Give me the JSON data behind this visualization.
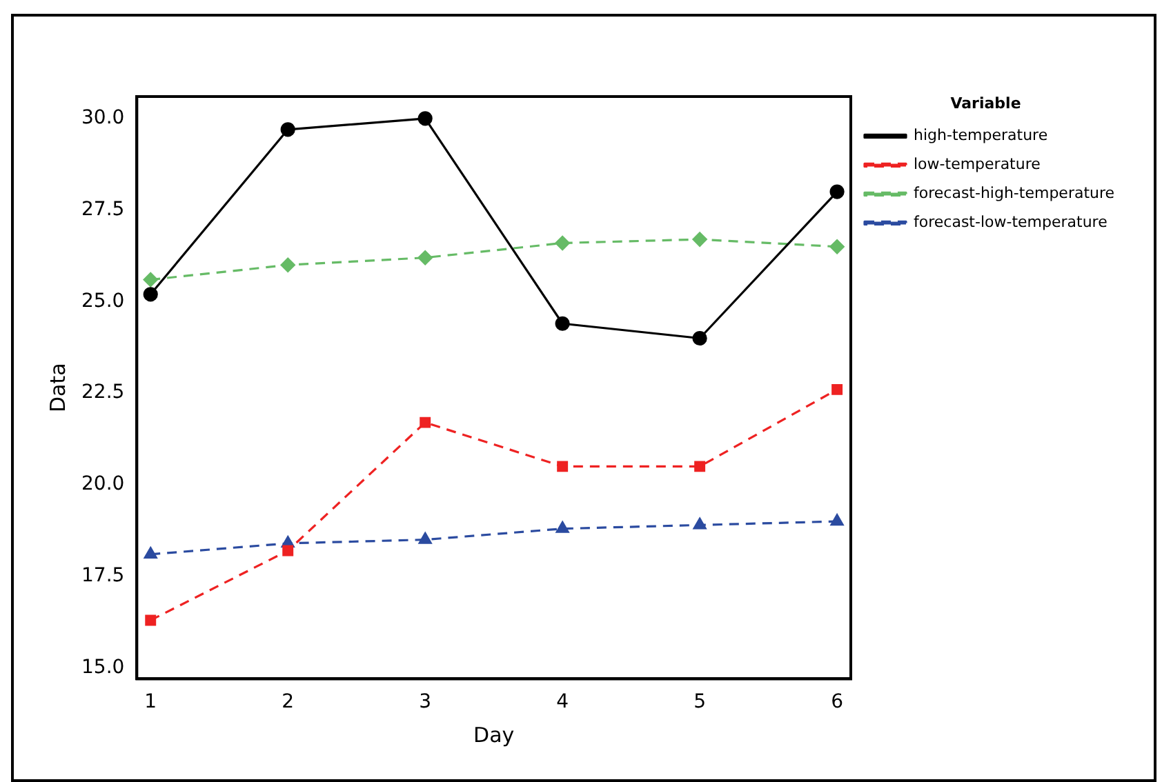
{
  "chart_data": {
    "type": "line",
    "xlabel": "Day",
    "ylabel": "Data",
    "legend_title": "Variable",
    "legend": "right",
    "x": [
      1,
      2,
      3,
      4,
      5,
      6
    ],
    "xlim": [
      0.9,
      6.1
    ],
    "xticks": [
      1,
      2,
      3,
      4,
      5,
      6
    ],
    "ylim": [
      14.7,
      30.6
    ],
    "yticks": [
      {
        "value": 15,
        "label": "15.0"
      },
      {
        "value": 17.5,
        "label": "17.5"
      },
      {
        "value": 20,
        "label": "20.0"
      },
      {
        "value": 22.5,
        "label": "22.5"
      },
      {
        "value": 25,
        "label": "25.0"
      },
      {
        "value": 27.5,
        "label": "27.5"
      },
      {
        "value": 30,
        "label": "30.0"
      }
    ],
    "grid": false,
    "series": [
      {
        "name": "high-temperature",
        "color": "#000000",
        "marker": "circle",
        "line_style": "solid",
        "values": [
          25.2,
          29.7,
          30.0,
          24.4,
          24.0,
          28.0
        ]
      },
      {
        "name": "low-temperature",
        "color": "#ee2222",
        "marker": "square",
        "line_style": "dashed",
        "values": [
          16.3,
          18.2,
          21.7,
          20.5,
          20.5,
          22.6
        ]
      },
      {
        "name": "forecast-high-temperature",
        "color": "#66bb66",
        "marker": "diamond",
        "line_style": "dashed",
        "values": [
          25.6,
          26.0,
          26.2,
          26.6,
          26.7,
          26.5
        ]
      },
      {
        "name": "forecast-low-temperature",
        "color": "#2b4ba0",
        "marker": "triangle",
        "line_style": "dashed",
        "values": [
          18.1,
          18.4,
          18.5,
          18.8,
          18.9,
          19.0
        ]
      }
    ]
  }
}
